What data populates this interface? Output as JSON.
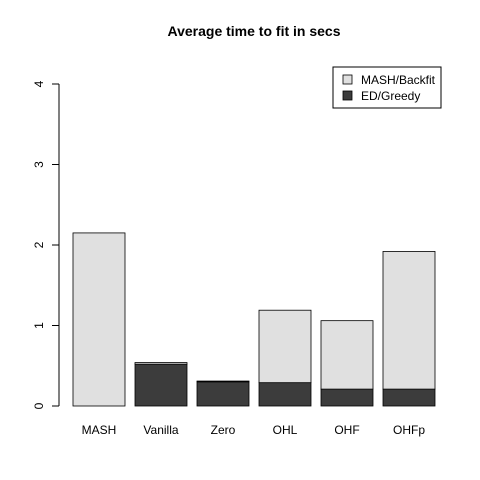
{
  "chart_data": {
    "type": "bar",
    "stacked": true,
    "title": "Average time to fit in secs",
    "categories": [
      "MASH",
      "Vanilla",
      "Zero",
      "OHL",
      "OHF",
      "OHFp"
    ],
    "series": [
      {
        "name": "ED/Greedy",
        "values": [
          0.0,
          0.52,
          0.3,
          0.29,
          0.21,
          0.21
        ],
        "color": "#3c3c3c"
      },
      {
        "name": "MASH/Backfit",
        "values": [
          2.15,
          0.02,
          0.01,
          0.9,
          0.85,
          1.71
        ],
        "color": "#e0e0e0"
      }
    ],
    "legend_order": [
      "MASH/Backfit",
      "ED/Greedy"
    ],
    "legend_position": "top-right",
    "yticks": [
      0,
      1,
      2,
      3,
      4
    ],
    "ylim": [
      0,
      4
    ],
    "grid": false
  }
}
